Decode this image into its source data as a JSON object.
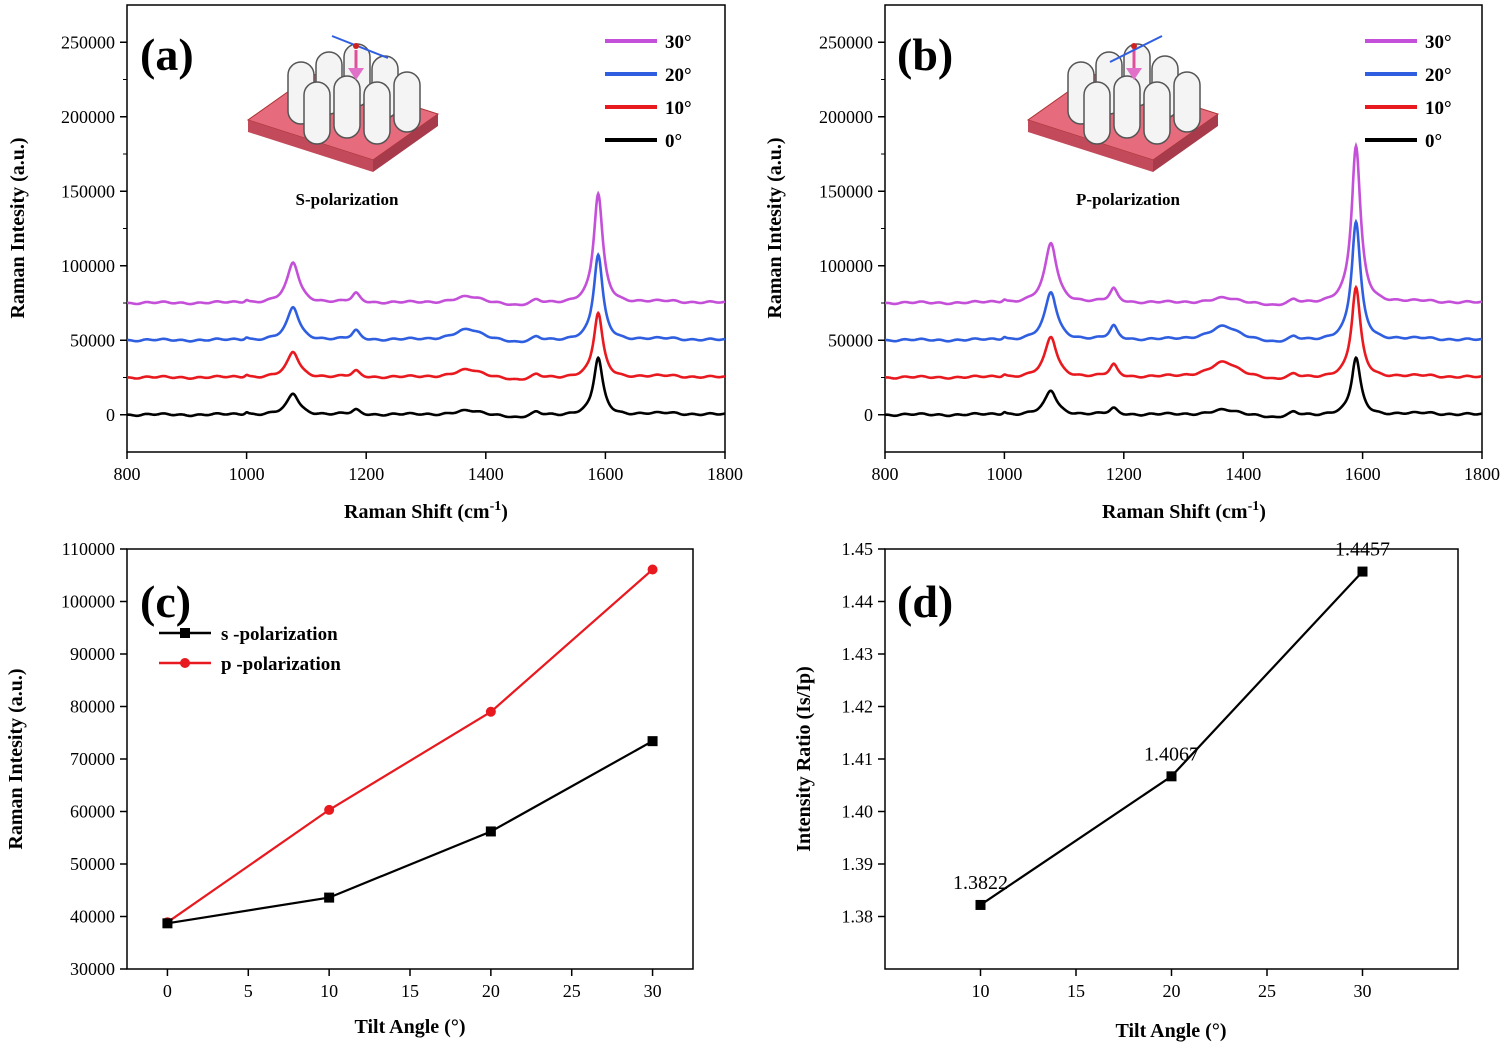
{
  "colors": {
    "black": "#000000",
    "red": "#e8191f",
    "blue": "#2f5fe0",
    "magenta": "#c44fd8",
    "substrate": "#e66b7d",
    "substrate_side": "#c24a5b"
  },
  "chart_data": [
    {
      "id": "a",
      "type": "line",
      "panel_label": "(a)",
      "xlabel": "Raman Shift (cm",
      "xlabel_sup": "-1",
      "xlabel_end": ")",
      "ylabel": "Raman Intesity (a.u.)",
      "xlim": [
        800,
        1800
      ],
      "ylim": [
        -25000,
        275000
      ],
      "xticks": [
        "800",
        "1000",
        "1200",
        "1400",
        "1600",
        "1800"
      ],
      "yticks": [
        "0",
        "50000",
        "100000",
        "150000",
        "200000",
        "250000"
      ],
      "inset_label": "S-polarization",
      "peak_centers": [
        1078,
        1183,
        1370,
        1588
      ],
      "series": [
        {
          "name": "0°",
          "color": "#000000",
          "baseline": 0,
          "peaks": [
            14000,
            3000,
            2500,
            38000
          ]
        },
        {
          "name": "10°",
          "color": "#e8191f",
          "baseline": 25000,
          "peaks": [
            17000,
            4000,
            5000,
            43000
          ]
        },
        {
          "name": "20°",
          "color": "#2f5fe0",
          "baseline": 50000,
          "peaks": [
            22000,
            6000,
            7000,
            57000
          ]
        },
        {
          "name": "30°",
          "color": "#c44fd8",
          "baseline": 75000,
          "peaks": [
            27000,
            6000,
            4000,
            73000
          ]
        }
      ]
    },
    {
      "id": "b",
      "type": "line",
      "panel_label": "(b)",
      "xlabel": "Raman Shift (cm",
      "xlabel_sup": "-1",
      "xlabel_end": ")",
      "ylabel": "Raman Intesity (a.u.)",
      "xlim": [
        800,
        1800
      ],
      "ylim": [
        -25000,
        275000
      ],
      "xticks": [
        "800",
        "1000",
        "1200",
        "1400",
        "1600",
        "1800"
      ],
      "yticks": [
        "0",
        "50000",
        "100000",
        "150000",
        "200000",
        "250000"
      ],
      "inset_label": "P-polarization",
      "peak_centers": [
        1078,
        1183,
        1367,
        1589
      ],
      "series": [
        {
          "name": "0°",
          "color": "#000000",
          "baseline": 0,
          "peaks": [
            16000,
            4000,
            3000,
            38000
          ]
        },
        {
          "name": "10°",
          "color": "#e8191f",
          "baseline": 25000,
          "peaks": [
            27000,
            8000,
            10000,
            60000
          ]
        },
        {
          "name": "20°",
          "color": "#2f5fe0",
          "baseline": 50000,
          "peaks": [
            32000,
            9000,
            9000,
            79000
          ]
        },
        {
          "name": "30°",
          "color": "#c44fd8",
          "baseline": 75000,
          "peaks": [
            40000,
            9000,
            3000,
            105000
          ]
        }
      ]
    },
    {
      "id": "c",
      "type": "line",
      "panel_label": "(c)",
      "xlabel": "Tilt Angle (°)",
      "ylabel": "Raman Intesity (a.u.)",
      "xlim": [
        -2.5,
        32.5
      ],
      "ylim": [
        30000,
        110000
      ],
      "xticks": [
        "0",
        "5",
        "10",
        "15",
        "20",
        "25",
        "30"
      ],
      "yticks": [
        "30000",
        "40000",
        "50000",
        "60000",
        "70000",
        "80000",
        "90000",
        "100000",
        "110000"
      ],
      "x": [
        0,
        10,
        20,
        30
      ],
      "series": [
        {
          "name": "s -polarization",
          "color": "#000000",
          "marker": "square",
          "values": [
            38700,
            43600,
            56200,
            73400
          ]
        },
        {
          "name": "p -polarization",
          "color": "#e8191f",
          "marker": "circle",
          "values": [
            38900,
            60300,
            79000,
            106100
          ]
        }
      ]
    },
    {
      "id": "d",
      "type": "line",
      "panel_label": "(d)",
      "xlabel": "Tilt Angle (°)",
      "ylabel": "Intensity Ratio (Is/Ip)",
      "xlim": [
        5,
        35
      ],
      "ylim": [
        1.37,
        1.45
      ],
      "xticks": [
        "10",
        "15",
        "20",
        "25",
        "30"
      ],
      "yticks": [
        "1.38",
        "1.39",
        "1.40",
        "1.41",
        "1.42",
        "1.43",
        "1.44",
        "1.45"
      ],
      "x": [
        10,
        20,
        30
      ],
      "values": [
        1.3822,
        1.4067,
        1.4457
      ],
      "point_labels": [
        "1.3822",
        "1.4067",
        "1.4457"
      ]
    }
  ]
}
